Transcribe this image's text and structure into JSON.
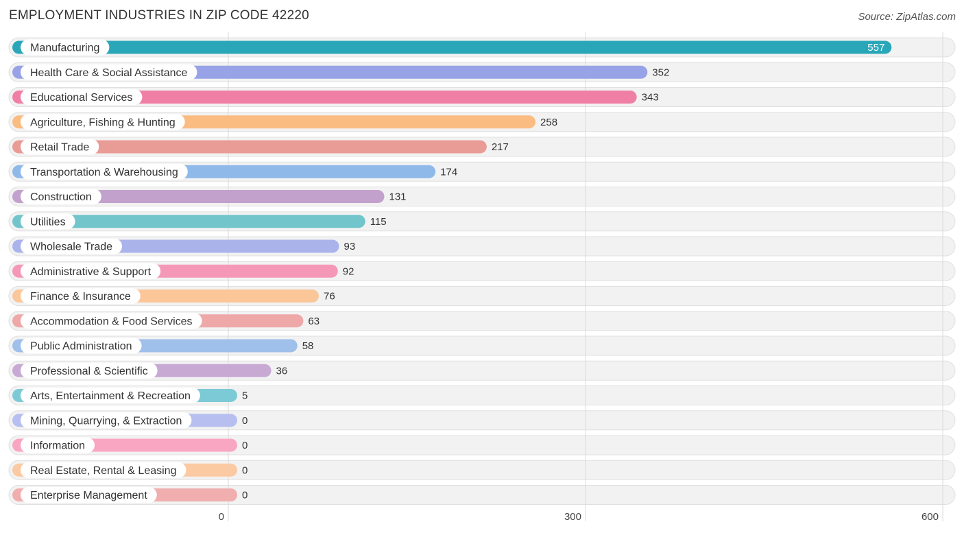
{
  "header": {
    "title": "EMPLOYMENT INDUSTRIES IN ZIP CODE 42220",
    "source": "Source: ZipAtlas.com"
  },
  "chart_data": {
    "type": "bar",
    "orientation": "horizontal",
    "title": "EMPLOYMENT INDUSTRIES IN ZIP CODE 42220",
    "xlim": [
      0,
      600
    ],
    "ticks": [
      0,
      300,
      600
    ],
    "grid": true,
    "categories": [
      "Manufacturing",
      "Health Care & Social Assistance",
      "Educational Services",
      "Agriculture, Fishing & Hunting",
      "Retail Trade",
      "Transportation & Warehousing",
      "Construction",
      "Utilities",
      "Wholesale Trade",
      "Administrative & Support",
      "Finance & Insurance",
      "Accommodation & Food Services",
      "Public Administration",
      "Professional & Scientific",
      "Arts, Entertainment & Recreation",
      "Mining, Quarrying, & Extraction",
      "Information",
      "Real Estate, Rental & Leasing",
      "Enterprise Management"
    ],
    "values": [
      557,
      352,
      343,
      258,
      217,
      174,
      131,
      115,
      93,
      92,
      76,
      63,
      58,
      36,
      5,
      0,
      0,
      0,
      0
    ],
    "colors": [
      "#29a7b8",
      "#97a3e6",
      "#f07fa5",
      "#fbbc82",
      "#e99b96",
      "#8fb9e9",
      "#c2a1cc",
      "#71c5cb",
      "#abb3eb",
      "#f598b8",
      "#fbc799",
      "#eea8a8",
      "#9ec0ea",
      "#c8a9d4",
      "#7ccad5",
      "#b6bff0",
      "#f9a6c3",
      "#fbcaa2",
      "#f1aeae"
    ]
  }
}
